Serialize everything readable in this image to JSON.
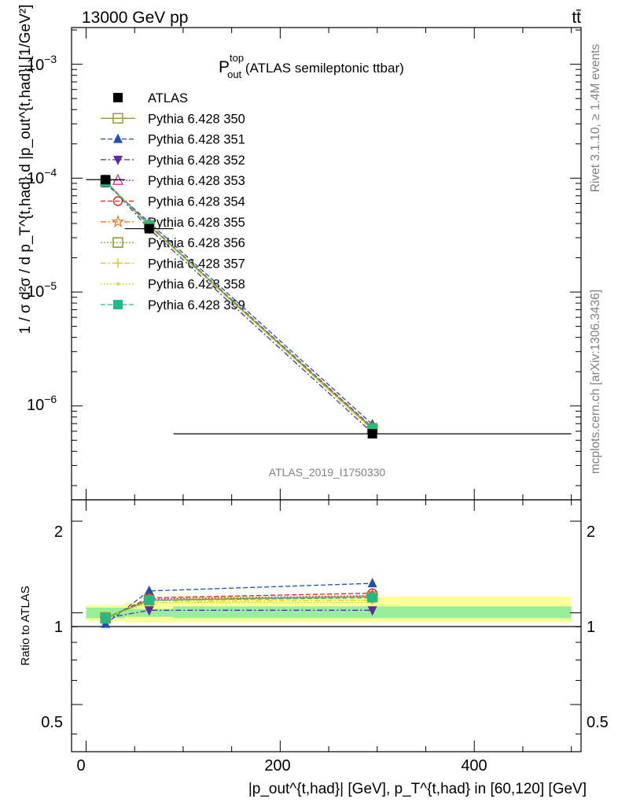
{
  "header": {
    "left": "13000 GeV pp",
    "right": "tt̄"
  },
  "side_labels": {
    "rivet": "Rivet 3.1.10, ≥ 1.4M events",
    "mcplots": "mcplots.cern.ch [arXiv:1306.3436]"
  },
  "watermark": "ATLAS_2019_I1750330",
  "main_panel": {
    "title_main": "P",
    "title_sup": "top",
    "title_sub": "out",
    "title_rest": " (ATLAS semileptonic ttbar)",
    "ylabel": "1 / σ d²σ / d p_T^{t,had} d |p_out^{t,had}| [1/GeV²]",
    "ytick_labels": [
      "10",
      "10",
      "10",
      "10"
    ],
    "ytick_exps": [
      "−3",
      "−4",
      "−5",
      "−6"
    ]
  },
  "ratio_panel": {
    "ylabel": "Ratio to ATLAS",
    "ytick_labels": [
      "0.5",
      "1",
      "2"
    ]
  },
  "xaxis": {
    "tick_labels": [
      "0",
      "200",
      "400"
    ],
    "label": "|p_out^{t,had}| [GeV], p_T^{t,had} in [60,120] [GeV]"
  },
  "legend": [
    {
      "name": "ATLAS",
      "color": "#000000",
      "marker": "square-filled",
      "dash": "none"
    },
    {
      "name": "Pythia 6.428 350",
      "color": "#999933",
      "marker": "square-open",
      "dash": "solid"
    },
    {
      "name": "Pythia 6.428 351",
      "color": "#1f4fb4",
      "marker": "triangle-up",
      "dash": "dashed"
    },
    {
      "name": "Pythia 6.428 352",
      "color": "#5a2ca0",
      "marker": "triangle-down",
      "dash": "dashdot"
    },
    {
      "name": "Pythia 6.428 353",
      "color": "#cc3399",
      "marker": "triangle-open",
      "dash": "dotted"
    },
    {
      "name": "Pythia 6.428 354",
      "color": "#dd2222",
      "marker": "circle-open",
      "dash": "dashed"
    },
    {
      "name": "Pythia 6.428 355",
      "color": "#ee7722",
      "marker": "star-open",
      "dash": "dashdot"
    },
    {
      "name": "Pythia 6.428 356",
      "color": "#889922",
      "marker": "square-open",
      "dash": "dotted"
    },
    {
      "name": "Pythia 6.428 357",
      "color": "#ddcc22",
      "marker": "cross",
      "dash": "dashdot"
    },
    {
      "name": "Pythia 6.428 358",
      "color": "#ccdd33",
      "marker": "dot",
      "dash": "dotted"
    },
    {
      "name": "Pythia 6.428 359",
      "color": "#22bb88",
      "marker": "square-filled",
      "dash": "dashed"
    }
  ],
  "chart_data": {
    "type": "line",
    "x": [
      20,
      65,
      295
    ],
    "x_bins": [
      [
        0,
        40
      ],
      [
        40,
        90
      ],
      [
        90,
        500
      ]
    ],
    "xlim": [
      -15,
      510
    ],
    "main_ylim": [
      1.5e-07,
      0.0021
    ],
    "main_yscale": "log",
    "ratio_ylim": [
      0.35,
      2.35
    ],
    "ratio_yscale": "log",
    "data": {
      "name": "ATLAS",
      "values": [
        9.7e-05,
        3.6e-05,
        5.7e-07
      ]
    },
    "ratio_bands": {
      "stat": [
        [
          0.96,
          1.04
        ],
        [
          0.97,
          1.03
        ],
        [
          0.96,
          1.05
        ]
      ],
      "total": [
        [
          0.94,
          1.06
        ],
        [
          0.93,
          1.08
        ],
        [
          0.93,
          1.13
        ]
      ]
    },
    "series": [
      {
        "name": "Pythia 6.428 350",
        "values": [
          9.4e-05,
          3.85e-05,
          6.35e-07
        ],
        "ratio": [
          0.965,
          1.1,
          1.13
        ]
      },
      {
        "name": "Pythia 6.428 351",
        "values": [
          9e-05,
          4.1e-05,
          6.9e-07
        ],
        "ratio": [
          0.92,
          1.18,
          1.25
        ]
      },
      {
        "name": "Pythia 6.428 352",
        "values": [
          9.4e-05,
          3.6e-05,
          5.8e-07
        ],
        "ratio": [
          0.96,
          1.02,
          1.02
        ]
      },
      {
        "name": "Pythia 6.428 353",
        "values": [
          9.35e-05,
          3.85e-05,
          6.4e-07
        ],
        "ratio": [
          0.955,
          1.11,
          1.14
        ]
      },
      {
        "name": "Pythia 6.428 354",
        "values": [
          9.35e-05,
          3.9e-05,
          6.5e-07
        ],
        "ratio": [
          0.955,
          1.12,
          1.16
        ]
      },
      {
        "name": "Pythia 6.428 355",
        "values": [
          9.4e-05,
          3.85e-05,
          6.35e-07
        ],
        "ratio": [
          0.96,
          1.1,
          1.13
        ]
      },
      {
        "name": "Pythia 6.428 356",
        "values": [
          9.4e-05,
          3.85e-05,
          6.35e-07
        ],
        "ratio": [
          0.96,
          1.1,
          1.13
        ]
      },
      {
        "name": "Pythia 6.428 357",
        "values": [
          9.4e-05,
          3.8e-05,
          6.2e-07
        ],
        "ratio": [
          0.96,
          1.09,
          1.1
        ]
      },
      {
        "name": "Pythia 6.428 358",
        "values": [
          9.4e-05,
          3.8e-05,
          6.1e-07
        ],
        "ratio": [
          0.965,
          1.08,
          1.08
        ]
      },
      {
        "name": "Pythia 6.428 359",
        "values": [
          9.4e-05,
          3.85e-05,
          6.3e-07
        ],
        "ratio": [
          0.96,
          1.1,
          1.12
        ]
      }
    ]
  }
}
